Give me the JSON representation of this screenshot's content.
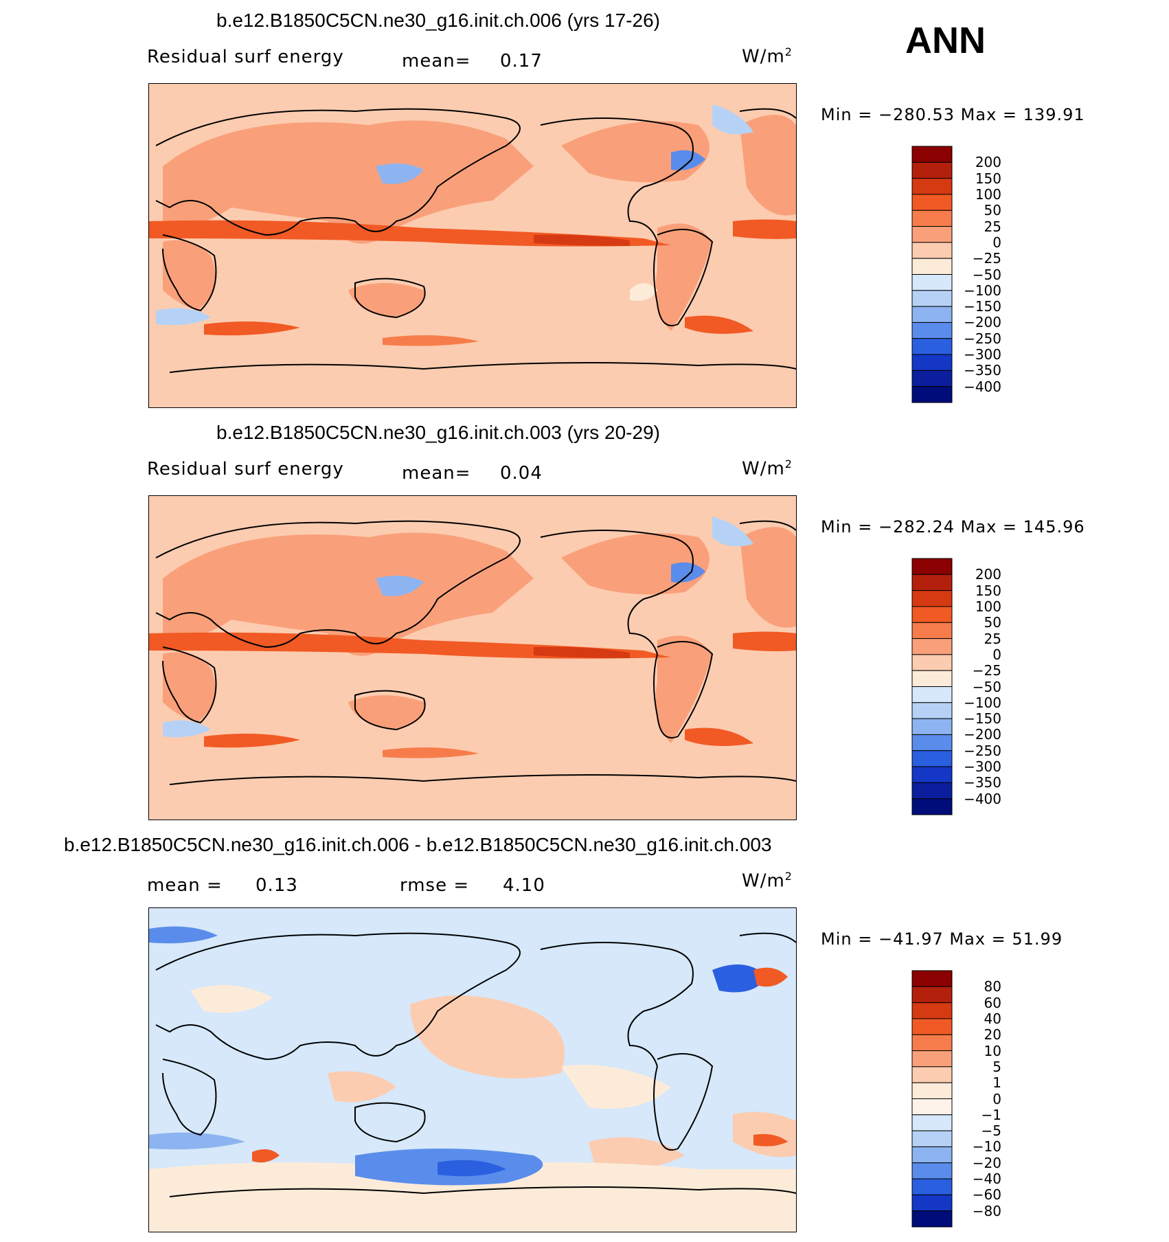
{
  "header": {
    "season": "ANN"
  },
  "chart_data": [
    {
      "type": "heatmap",
      "title": "b.e12.B1850C5CN.ne30_g16.init.ch.006 (yrs 17-26)",
      "variable": "Residual surf energy",
      "mean_label": "mean=",
      "mean": "0.17",
      "units_base": "W/m",
      "units_exp": "2",
      "min_text": "Min = −280.53 Max = 139.91",
      "min": -280.53,
      "max": 139.91,
      "colorbar": {
        "labels": [
          "200",
          "150",
          "100",
          "50",
          "25",
          "0",
          "−25",
          "−50",
          "−100",
          "−150",
          "−200",
          "−250",
          "−300",
          "−350",
          "−400"
        ],
        "colors": [
          "#8b0000",
          "#b3200c",
          "#d63a12",
          "#f15a24",
          "#f67d4b",
          "#f9a07a",
          "#fcccb0",
          "#fdebd9",
          "#d6e8fa",
          "#b5d2f6",
          "#8db4f0",
          "#5a8deb",
          "#2a5fe0",
          "#1437c6",
          "#0b1f9e",
          "#000c7a"
        ]
      }
    },
    {
      "type": "heatmap",
      "title": "b.e12.B1850C5CN.ne30_g16.init.ch.003 (yrs 20-29)",
      "variable": "Residual surf energy",
      "mean_label": "mean=",
      "mean": "0.04",
      "units_base": "W/m",
      "units_exp": "2",
      "min_text": "Min = −282.24 Max = 145.96",
      "min": -282.24,
      "max": 145.96,
      "colorbar": {
        "labels": [
          "200",
          "150",
          "100",
          "50",
          "25",
          "0",
          "−25",
          "−50",
          "−100",
          "−150",
          "−200",
          "−250",
          "−300",
          "−350",
          "−400"
        ],
        "colors": [
          "#8b0000",
          "#b3200c",
          "#d63a12",
          "#f15a24",
          "#f67d4b",
          "#f9a07a",
          "#fcccb0",
          "#fdebd9",
          "#d6e8fa",
          "#b5d2f6",
          "#8db4f0",
          "#5a8deb",
          "#2a5fe0",
          "#1437c6",
          "#0b1f9e",
          "#000c7a"
        ]
      }
    },
    {
      "type": "heatmap",
      "title": "b.e12.B1850C5CN.ne30_g16.init.ch.006 - b.e12.B1850C5CN.ne30_g16.init.ch.003",
      "mean_label": "mean =",
      "mean": "0.13",
      "rmse_label": "rmse =",
      "rmse": "4.10",
      "units_base": "W/m",
      "units_exp": "2",
      "min_text": "Min = −41.97 Max =  51.99",
      "min": -41.97,
      "max": 51.99,
      "colorbar": {
        "labels": [
          "80",
          "60",
          "40",
          "20",
          "10",
          "5",
          "1",
          "0",
          "−1",
          "−5",
          "−10",
          "−20",
          "−40",
          "−60",
          "−80"
        ],
        "colors": [
          "#8b0000",
          "#b3200c",
          "#d63a12",
          "#f15a24",
          "#f67d4b",
          "#f9a07a",
          "#fcccb0",
          "#fdebd9",
          "#fdf3ea",
          "#d6e8fa",
          "#b5d2f6",
          "#8db4f0",
          "#5a8deb",
          "#2a5fe0",
          "#1437c6",
          "#000c7a"
        ]
      }
    }
  ]
}
